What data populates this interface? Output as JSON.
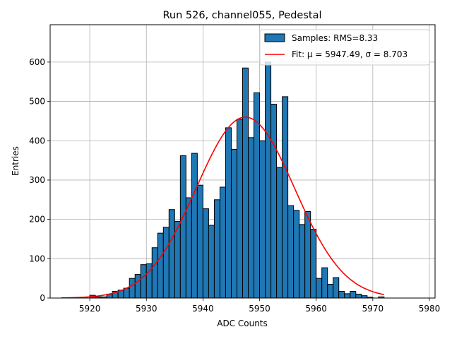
{
  "chart_data": {
    "type": "bar",
    "title": "Run 526, channel055, Pedestal",
    "xlabel": "ADC Counts",
    "ylabel": "Entries",
    "xlim": [
      5913,
      5981
    ],
    "ylim": [
      0,
      695
    ],
    "xticks": [
      5920,
      5930,
      5940,
      5950,
      5960,
      5970,
      5980
    ],
    "yticks": [
      0,
      100,
      200,
      300,
      400,
      500,
      600
    ],
    "grid": true,
    "legend_position": "top-right",
    "histogram": {
      "name": "Samples: RMS=8.33",
      "color": "#1f77b4",
      "edge_color": "#000000",
      "bin_start": 5915,
      "bin_width": 1,
      "counts": [
        0,
        0,
        0,
        0,
        0,
        7,
        3,
        3,
        10,
        17,
        20,
        25,
        50,
        60,
        85,
        87,
        128,
        165,
        180,
        225,
        195,
        362,
        255,
        368,
        287,
        227,
        185,
        250,
        282,
        433,
        378,
        455,
        585,
        408,
        522,
        400,
        600,
        493,
        332,
        512,
        235,
        223,
        187,
        220,
        175,
        50,
        77,
        35,
        52,
        17,
        11,
        17,
        10,
        6,
        2,
        0,
        3,
        0,
        0,
        0,
        0,
        0,
        0
      ]
    },
    "fit": {
      "name": "Fit: μ = 5947.49, σ = 8.703",
      "color": "#ff0000",
      "mu": 5947.49,
      "sigma": 8.703,
      "amplitude": 460,
      "x_range": [
        5915,
        5972
      ]
    }
  }
}
